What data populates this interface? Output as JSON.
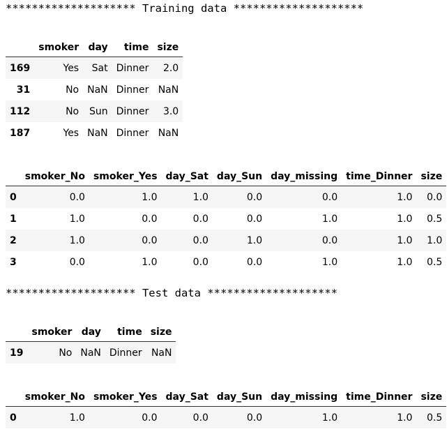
{
  "train_banner": "******************** Training data ********************",
  "test_banner": "******************** Test data ********************",
  "train_raw": {
    "columns": [
      "smoker",
      "day",
      "time",
      "size"
    ],
    "rows": [
      {
        "index": "169",
        "cells": [
          "Yes",
          "Sat",
          "Dinner",
          "2.0"
        ]
      },
      {
        "index": "31",
        "cells": [
          "No",
          "NaN",
          "Dinner",
          "NaN"
        ]
      },
      {
        "index": "112",
        "cells": [
          "No",
          "Sun",
          "Dinner",
          "3.0"
        ]
      },
      {
        "index": "187",
        "cells": [
          "Yes",
          "NaN",
          "Dinner",
          "NaN"
        ]
      }
    ]
  },
  "train_encoded": {
    "columns": [
      "smoker_No",
      "smoker_Yes",
      "day_Sat",
      "day_Sun",
      "day_missing",
      "time_Dinner",
      "size"
    ],
    "rows": [
      {
        "index": "0",
        "cells": [
          "0.0",
          "1.0",
          "1.0",
          "0.0",
          "0.0",
          "1.0",
          "0.0"
        ]
      },
      {
        "index": "1",
        "cells": [
          "1.0",
          "0.0",
          "0.0",
          "0.0",
          "1.0",
          "1.0",
          "0.5"
        ]
      },
      {
        "index": "2",
        "cells": [
          "1.0",
          "0.0",
          "0.0",
          "1.0",
          "0.0",
          "1.0",
          "1.0"
        ]
      },
      {
        "index": "3",
        "cells": [
          "0.0",
          "1.0",
          "0.0",
          "0.0",
          "1.0",
          "1.0",
          "0.5"
        ]
      }
    ]
  },
  "test_raw": {
    "columns": [
      "smoker",
      "day",
      "time",
      "size"
    ],
    "rows": [
      {
        "index": "19",
        "cells": [
          "No",
          "NaN",
          "Dinner",
          "NaN"
        ]
      }
    ]
  },
  "test_encoded": {
    "columns": [
      "smoker_No",
      "smoker_Yes",
      "day_Sat",
      "day_Sun",
      "day_missing",
      "time_Dinner",
      "size"
    ],
    "rows": [
      {
        "index": "0",
        "cells": [
          "1.0",
          "0.0",
          "0.0",
          "0.0",
          "1.0",
          "1.0",
          "0.5"
        ]
      }
    ]
  }
}
